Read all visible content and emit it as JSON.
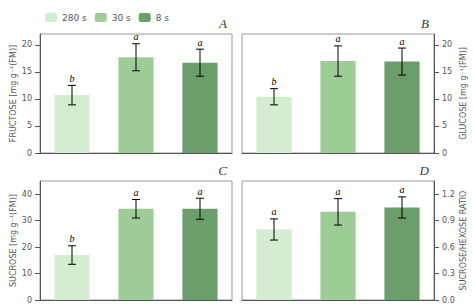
{
  "chart_data": [
    {
      "type": "bar",
      "title": "A",
      "ylabel": "FRUCTOSE [mg g⁻¹(FM)]",
      "categories": [
        "280 s",
        "30 s",
        "8 s"
      ],
      "values": [
        10.7,
        17.7,
        16.7
      ],
      "errors": [
        1.8,
        2.5,
        2.5
      ],
      "annotations": [
        "b",
        "a",
        "a"
      ],
      "colors": [
        "#d4edd0",
        "#9dcc97",
        "#6b9e6b"
      ],
      "ylim": [
        0,
        22
      ],
      "yticks": [
        0,
        5,
        10,
        15,
        20
      ],
      "grid": false,
      "tick_labels": "y",
      "legend": "upper left"
    },
    {
      "type": "bar",
      "title": "B",
      "ylabel": "GLUCOSE [mg g⁻¹(FM)]",
      "categories": [
        "280 s",
        "30 s",
        "8 s"
      ],
      "values": [
        10.4,
        17.0,
        16.9
      ],
      "errors": [
        1.5,
        2.8,
        2.5
      ],
      "annotations": [
        "b",
        "a",
        "a"
      ],
      "colors": [
        "#d4edd0",
        "#9dcc97",
        "#6b9e6b"
      ],
      "ylim": [
        0,
        22
      ],
      "yticks": [
        0,
        5,
        10,
        15,
        20
      ],
      "grid": false,
      "tick_labels": "y"
    },
    {
      "type": "bar",
      "title": "C",
      "ylabel": "SUCROSE [mg g⁻¹(FM)]",
      "categories": [
        "280 s",
        "30 s",
        "8 s"
      ],
      "values": [
        17.0,
        34.5,
        34.5
      ],
      "errors": [
        3.5,
        3.5,
        4.0
      ],
      "annotations": [
        "b",
        "a",
        "a"
      ],
      "colors": [
        "#d4edd0",
        "#9dcc97",
        "#6b9e6b"
      ],
      "ylim": [
        0,
        45
      ],
      "yticks": [
        0,
        10,
        20,
        30,
        40
      ],
      "grid": false,
      "tick_labels": "y"
    },
    {
      "type": "bar",
      "title": "D",
      "ylabel": "SUCROSE/HEXOSE RATIO",
      "categories": [
        "280 s",
        "30 s",
        "8 s"
      ],
      "values": [
        0.8,
        1.0,
        1.05
      ],
      "errors": [
        0.12,
        0.15,
        0.12
      ],
      "annotations": [
        "a",
        "a",
        "a"
      ],
      "colors": [
        "#d4edd0",
        "#9dcc97",
        "#6b9e6b"
      ],
      "ylim": [
        0,
        1.35
      ],
      "yticks": [
        {
          "value": 0,
          "label": "0.0"
        },
        0.3,
        0.6,
        0.9,
        1.2
      ],
      "grid": false,
      "tick_labels": "y"
    }
  ]
}
